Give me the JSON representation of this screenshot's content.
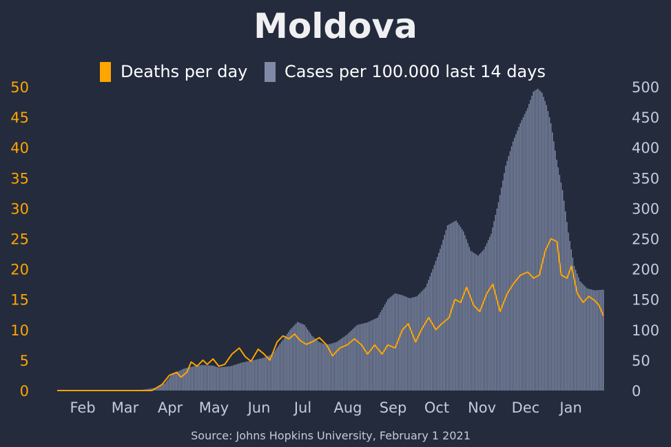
{
  "chart_data": {
    "type": "bar+line",
    "title": "Moldova",
    "source": "Source: Johns Hopkins University, February 1 2021",
    "legend": [
      {
        "label": "Deaths per day",
        "color": "#ffa500",
        "placement": "top"
      },
      {
        "label": "Cases per 100.000 last 14 days",
        "color": "#7f8aa6",
        "placement": "top"
      }
    ],
    "x_tick_labels": [
      "Feb",
      "Mar",
      "Apr",
      "May",
      "Jun",
      "Jul",
      "Aug",
      "Sep",
      "Oct",
      "Nov",
      "Dec",
      "Jan"
    ],
    "x_tick_dates": [
      "2020-02-01",
      "2020-03-01",
      "2020-04-01",
      "2020-05-01",
      "2020-06-01",
      "2020-07-01",
      "2020-08-01",
      "2020-09-01",
      "2020-10-01",
      "2020-11-01",
      "2020-12-01",
      "2021-01-01"
    ],
    "x_range": [
      "2020-01-22",
      "2021-01-31"
    ],
    "y_left": {
      "min": 0,
      "max": 50,
      "ticks": [
        "0",
        "5",
        "10",
        "15",
        "20",
        "25",
        "30",
        "35",
        "40",
        "45",
        "50"
      ],
      "color": "#ffa500"
    },
    "y_right": {
      "min": 0,
      "max": 500,
      "ticks": [
        "0",
        "50",
        "100",
        "150",
        "200",
        "250",
        "300",
        "350",
        "400",
        "450",
        "500"
      ],
      "color": "#c5cbda"
    },
    "grid": false,
    "series": [
      {
        "name": "Cases per 100.000 last 14 days",
        "kind": "bar",
        "axis": "right",
        "color": "#7f8aa6",
        "points": [
          [
            "2020-01-22",
            0
          ],
          [
            "2020-03-10",
            0
          ],
          [
            "2020-03-20",
            1
          ],
          [
            "2020-03-31",
            5
          ],
          [
            "2020-04-05",
            12
          ],
          [
            "2020-04-10",
            27
          ],
          [
            "2020-04-18",
            36
          ],
          [
            "2020-04-25",
            40
          ],
          [
            "2020-05-01",
            42
          ],
          [
            "2020-05-08",
            41
          ],
          [
            "2020-05-12",
            38
          ],
          [
            "2020-05-20",
            40
          ],
          [
            "2020-05-28",
            46
          ],
          [
            "2020-06-05",
            50
          ],
          [
            "2020-06-12",
            54
          ],
          [
            "2020-06-18",
            60
          ],
          [
            "2020-06-24",
            80
          ],
          [
            "2020-06-30",
            100
          ],
          [
            "2020-07-05",
            113
          ],
          [
            "2020-07-10",
            108
          ],
          [
            "2020-07-15",
            90
          ],
          [
            "2020-07-20",
            80
          ],
          [
            "2020-07-25",
            75
          ],
          [
            "2020-08-01",
            80
          ],
          [
            "2020-08-08",
            92
          ],
          [
            "2020-08-15",
            108
          ],
          [
            "2020-08-22",
            112
          ],
          [
            "2020-08-29",
            120
          ],
          [
            "2020-09-05",
            150
          ],
          [
            "2020-09-10",
            160
          ],
          [
            "2020-09-15",
            157
          ],
          [
            "2020-09-20",
            152
          ],
          [
            "2020-09-25",
            155
          ],
          [
            "2020-10-01",
            170
          ],
          [
            "2020-10-06",
            200
          ],
          [
            "2020-10-12",
            240
          ],
          [
            "2020-10-16",
            272
          ],
          [
            "2020-10-22",
            280
          ],
          [
            "2020-10-27",
            262
          ],
          [
            "2020-11-01",
            230
          ],
          [
            "2020-11-06",
            222
          ],
          [
            "2020-11-10",
            232
          ],
          [
            "2020-11-15",
            258
          ],
          [
            "2020-11-20",
            310
          ],
          [
            "2020-11-25",
            370
          ],
          [
            "2020-11-30",
            410
          ],
          [
            "2020-12-05",
            440
          ],
          [
            "2020-12-10",
            465
          ],
          [
            "2020-12-14",
            492
          ],
          [
            "2020-12-17",
            497
          ],
          [
            "2020-12-20",
            490
          ],
          [
            "2020-12-23",
            470
          ],
          [
            "2020-12-26",
            440
          ],
          [
            "2020-12-30",
            380
          ],
          [
            "2021-01-03",
            330
          ],
          [
            "2021-01-07",
            260
          ],
          [
            "2021-01-11",
            205
          ],
          [
            "2021-01-15",
            180
          ],
          [
            "2021-01-20",
            168
          ],
          [
            "2021-01-25",
            165
          ],
          [
            "2021-01-31",
            166
          ]
        ]
      },
      {
        "name": "Deaths per day",
        "kind": "line",
        "axis": "left",
        "color": "#ffa500",
        "points": [
          [
            "2020-01-22",
            0
          ],
          [
            "2020-03-27",
            0
          ],
          [
            "2020-04-03",
            1
          ],
          [
            "2020-04-08",
            2.5
          ],
          [
            "2020-04-13",
            3
          ],
          [
            "2020-04-16",
            2.2
          ],
          [
            "2020-04-20",
            3
          ],
          [
            "2020-04-23",
            4.7
          ],
          [
            "2020-04-27",
            4
          ],
          [
            "2020-05-01",
            5
          ],
          [
            "2020-05-04",
            4.3
          ],
          [
            "2020-05-08",
            5.2
          ],
          [
            "2020-05-12",
            4
          ],
          [
            "2020-05-16",
            4.3
          ],
          [
            "2020-05-21",
            6
          ],
          [
            "2020-05-26",
            7
          ],
          [
            "2020-05-30",
            5.6
          ],
          [
            "2020-06-03",
            4.8
          ],
          [
            "2020-06-08",
            6.8
          ],
          [
            "2020-06-12",
            6
          ],
          [
            "2020-06-16",
            5
          ],
          [
            "2020-06-21",
            8
          ],
          [
            "2020-06-25",
            9
          ],
          [
            "2020-06-29",
            8.5
          ],
          [
            "2020-07-03",
            9.3
          ],
          [
            "2020-07-07",
            8.2
          ],
          [
            "2020-07-11",
            7.6
          ],
          [
            "2020-07-15",
            8
          ],
          [
            "2020-07-20",
            8.7
          ],
          [
            "2020-07-25",
            7.5
          ],
          [
            "2020-07-29",
            5.7
          ],
          [
            "2020-08-03",
            7
          ],
          [
            "2020-08-08",
            7.5
          ],
          [
            "2020-08-13",
            8.5
          ],
          [
            "2020-08-18",
            7.5
          ],
          [
            "2020-08-22",
            6
          ],
          [
            "2020-08-27",
            7.5
          ],
          [
            "2020-09-01",
            6
          ],
          [
            "2020-09-05",
            7.5
          ],
          [
            "2020-09-10",
            7
          ],
          [
            "2020-09-15",
            10
          ],
          [
            "2020-09-19",
            11
          ],
          [
            "2020-09-24",
            8
          ],
          [
            "2020-09-28",
            10
          ],
          [
            "2020-10-03",
            12
          ],
          [
            "2020-10-08",
            10
          ],
          [
            "2020-10-12",
            11
          ],
          [
            "2020-10-17",
            12
          ],
          [
            "2020-10-21",
            15
          ],
          [
            "2020-10-25",
            14.5
          ],
          [
            "2020-10-29",
            17
          ],
          [
            "2020-11-03",
            14
          ],
          [
            "2020-11-07",
            13
          ],
          [
            "2020-11-12",
            16
          ],
          [
            "2020-11-16",
            17.5
          ],
          [
            "2020-11-21",
            13
          ],
          [
            "2020-11-26",
            16
          ],
          [
            "2020-11-30",
            17.5
          ],
          [
            "2020-12-05",
            19
          ],
          [
            "2020-12-10",
            19.5
          ],
          [
            "2020-12-14",
            18.5
          ],
          [
            "2020-12-18",
            19
          ],
          [
            "2020-12-22",
            23
          ],
          [
            "2020-12-26",
            25
          ],
          [
            "2020-12-30",
            24.5
          ],
          [
            "2021-01-02",
            19
          ],
          [
            "2021-01-06",
            18.5
          ],
          [
            "2021-01-09",
            20.5
          ],
          [
            "2021-01-13",
            16
          ],
          [
            "2021-01-17",
            14.5
          ],
          [
            "2021-01-21",
            15.5
          ],
          [
            "2021-01-25",
            14.8
          ],
          [
            "2021-01-28",
            14
          ],
          [
            "2021-01-31",
            12.3
          ]
        ]
      }
    ]
  }
}
